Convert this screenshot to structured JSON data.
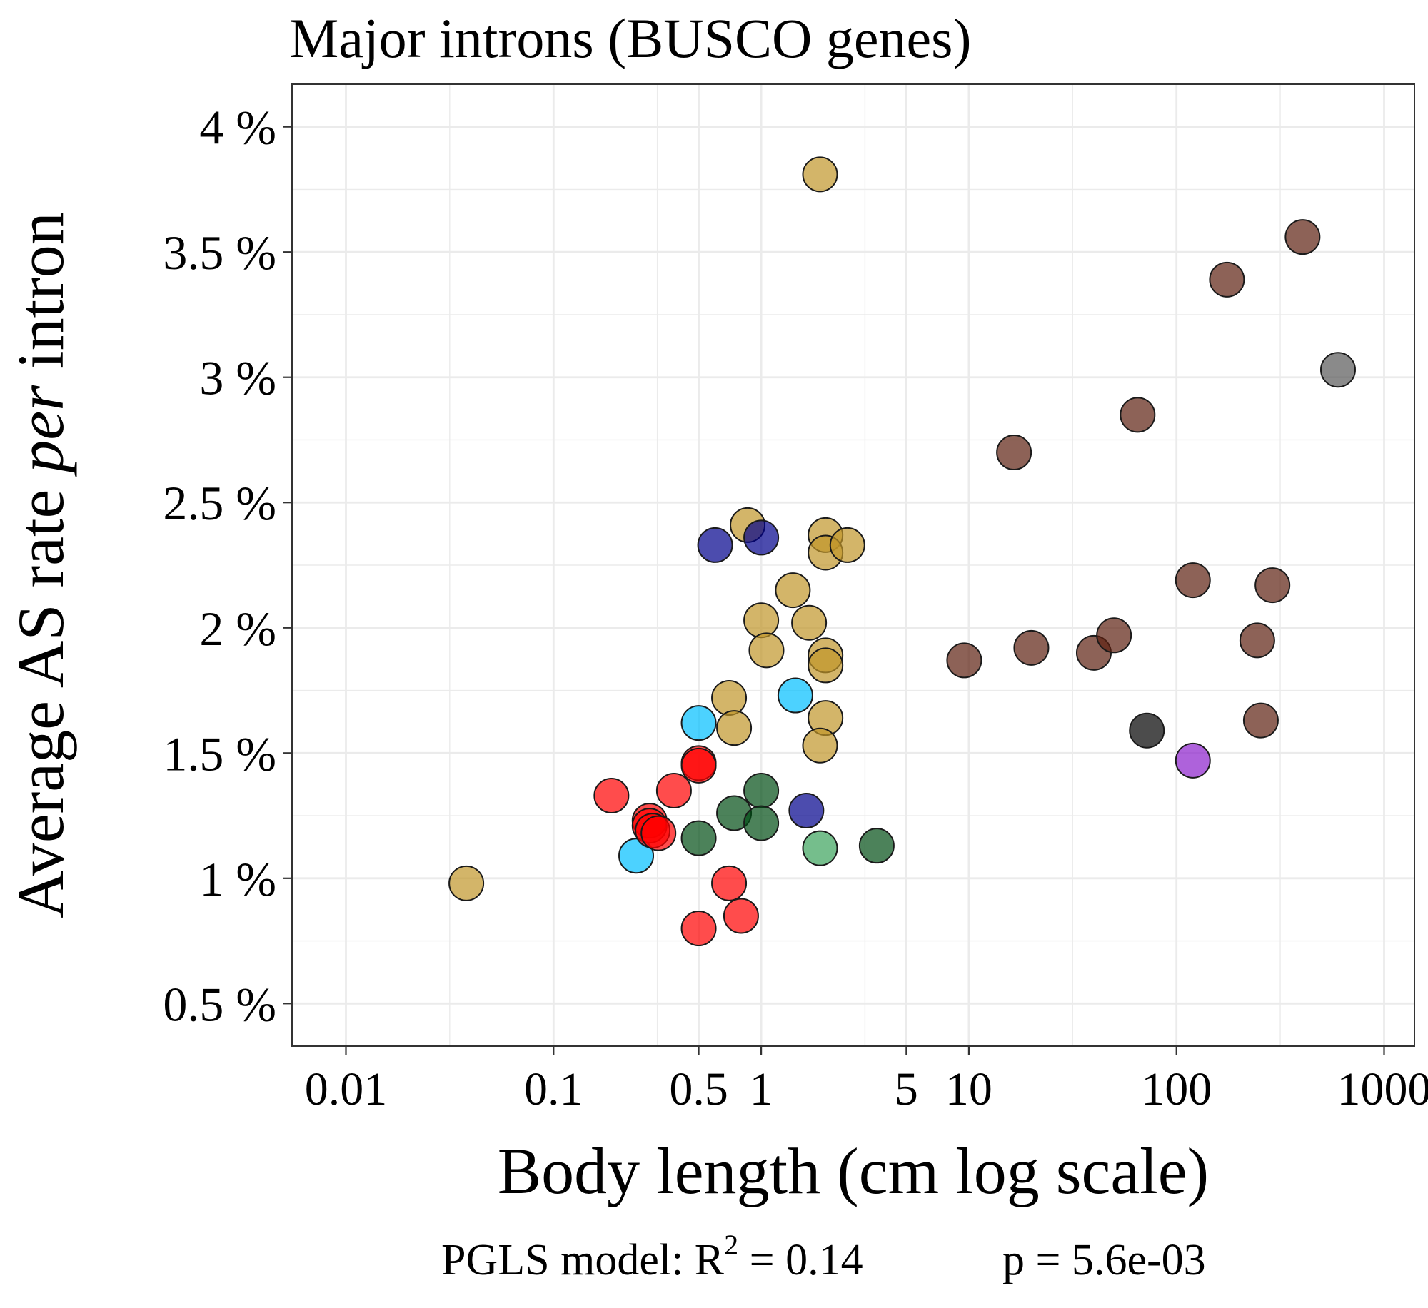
{
  "chart_data": {
    "type": "scatter",
    "title": "Major introns (BUSCO genes)",
    "xlabel": "Body length (cm log scale)",
    "ylabel": {
      "prefix": "Average AS rate ",
      "italic": "per",
      "suffix": " intron"
    },
    "x_scale": "log10",
    "xlim": [
      0.0055,
      1400
    ],
    "ylim": [
      0.33,
      4.17
    ],
    "x_ticks": [
      0.01,
      0.1,
      0.5,
      1,
      5,
      10,
      100,
      1000
    ],
    "x_tick_labels": [
      "0.01",
      "0.1",
      "0.5",
      "1",
      "5",
      "10",
      "100",
      "1000"
    ],
    "x_minor_ticks": [
      0.0316,
      0.316,
      3.16,
      31.6,
      316
    ],
    "y_ticks": [
      0.5,
      1,
      1.5,
      2,
      2.5,
      3,
      3.5,
      4
    ],
    "y_tick_labels": [
      "0.5 %",
      "1 %",
      "1.5 %",
      "2 %",
      "2.5 %",
      "3 %",
      "3.5 %",
      "4 %"
    ],
    "y_minor_ticks": [
      0.75,
      1.25,
      1.75,
      2.25,
      2.75,
      3.25,
      3.75
    ],
    "grid": true,
    "legend": "none",
    "footnote": {
      "prefix": "PGLS model: R",
      "superscript": "2",
      "r2": " = 0.14",
      "pvalue": "p = 5.6e-03"
    },
    "points": [
      {
        "x": 0.038,
        "y": 0.98,
        "color": "#c0952a"
      },
      {
        "x": 1.92,
        "y": 3.81,
        "color": "#c0952a"
      },
      {
        "x": 0.86,
        "y": 2.41,
        "color": "#c0952a"
      },
      {
        "x": 2.04,
        "y": 2.37,
        "color": "#c0952a"
      },
      {
        "x": 2.04,
        "y": 2.3,
        "color": "#c0952a"
      },
      {
        "x": 2.6,
        "y": 2.33,
        "color": "#c0952a"
      },
      {
        "x": 1.42,
        "y": 2.15,
        "color": "#c0952a"
      },
      {
        "x": 1.0,
        "y": 2.03,
        "color": "#c0952a"
      },
      {
        "x": 1.7,
        "y": 2.02,
        "color": "#c0952a"
      },
      {
        "x": 1.06,
        "y": 1.91,
        "color": "#c0952a"
      },
      {
        "x": 2.04,
        "y": 1.89,
        "color": "#c0952a"
      },
      {
        "x": 2.04,
        "y": 1.85,
        "color": "#c0952a"
      },
      {
        "x": 0.7,
        "y": 1.72,
        "color": "#c0952a"
      },
      {
        "x": 0.74,
        "y": 1.6,
        "color": "#c0952a"
      },
      {
        "x": 2.04,
        "y": 1.64,
        "color": "#c0952a"
      },
      {
        "x": 1.92,
        "y": 1.53,
        "color": "#c0952a"
      },
      {
        "x": 0.6,
        "y": 2.33,
        "color": "#00008b"
      },
      {
        "x": 1.0,
        "y": 2.36,
        "color": "#00008b"
      },
      {
        "x": 1.65,
        "y": 1.27,
        "color": "#00008b"
      },
      {
        "x": 1.46,
        "y": 1.73,
        "color": "#00bfff"
      },
      {
        "x": 0.5,
        "y": 1.62,
        "color": "#00bfff"
      },
      {
        "x": 0.25,
        "y": 1.09,
        "color": "#00bfff"
      },
      {
        "x": 0.5,
        "y": 1.46,
        "color": "#ff0000"
      },
      {
        "x": 0.5,
        "y": 1.45,
        "color": "#ff0000"
      },
      {
        "x": 0.38,
        "y": 1.35,
        "color": "#ff0000"
      },
      {
        "x": 0.19,
        "y": 1.33,
        "color": "#ff0000"
      },
      {
        "x": 0.29,
        "y": 1.23,
        "color": "#ff0000"
      },
      {
        "x": 0.29,
        "y": 1.21,
        "color": "#ff0000"
      },
      {
        "x": 0.3,
        "y": 1.19,
        "color": "#ff0000"
      },
      {
        "x": 0.32,
        "y": 1.18,
        "color": "#ff0000"
      },
      {
        "x": 0.7,
        "y": 0.98,
        "color": "#ff0000"
      },
      {
        "x": 0.8,
        "y": 0.85,
        "color": "#ff0000"
      },
      {
        "x": 0.5,
        "y": 0.8,
        "color": "#ff0000"
      },
      {
        "x": 1.0,
        "y": 1.35,
        "color": "#004d14"
      },
      {
        "x": 0.74,
        "y": 1.26,
        "color": "#004d14"
      },
      {
        "x": 1.0,
        "y": 1.22,
        "color": "#004d14"
      },
      {
        "x": 0.5,
        "y": 1.16,
        "color": "#004d14"
      },
      {
        "x": 3.6,
        "y": 1.13,
        "color": "#004d14"
      },
      {
        "x": 1.92,
        "y": 1.12,
        "color": "#3aa35b"
      },
      {
        "x": 9.5,
        "y": 1.87,
        "color": "#5c1f10"
      },
      {
        "x": 16.5,
        "y": 2.7,
        "color": "#5c1f10"
      },
      {
        "x": 20,
        "y": 1.92,
        "color": "#5c1f10"
      },
      {
        "x": 40,
        "y": 1.9,
        "color": "#5c1f10"
      },
      {
        "x": 50,
        "y": 1.97,
        "color": "#5c1f10"
      },
      {
        "x": 65,
        "y": 2.85,
        "color": "#5c1f10"
      },
      {
        "x": 120,
        "y": 2.19,
        "color": "#5c1f10"
      },
      {
        "x": 175,
        "y": 3.39,
        "color": "#5c1f10"
      },
      {
        "x": 245,
        "y": 1.95,
        "color": "#5c1f10"
      },
      {
        "x": 255,
        "y": 1.63,
        "color": "#5c1f10"
      },
      {
        "x": 290,
        "y": 2.17,
        "color": "#5c1f10"
      },
      {
        "x": 405,
        "y": 3.56,
        "color": "#5c1f10"
      },
      {
        "x": 72,
        "y": 1.59,
        "color": "#000000"
      },
      {
        "x": 600,
        "y": 3.03,
        "color": "#595959"
      },
      {
        "x": 120,
        "y": 1.47,
        "color": "#8b1fcc"
      }
    ]
  }
}
